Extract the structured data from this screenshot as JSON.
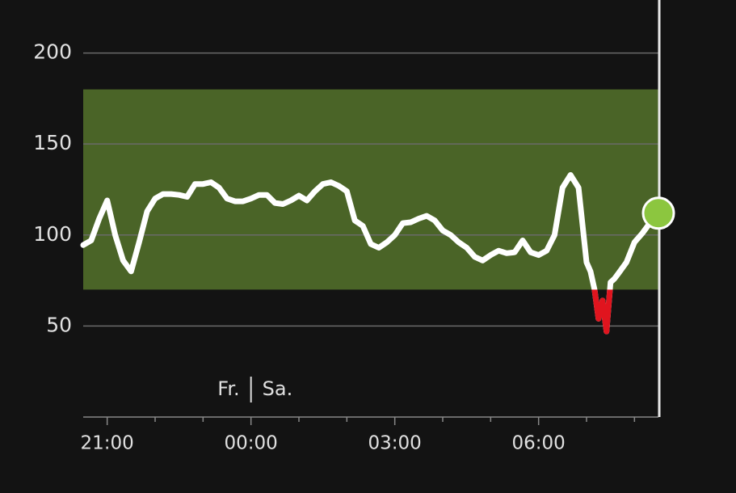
{
  "chart_data": {
    "type": "line",
    "x": [
      "20:30",
      "20:40",
      "20:50",
      "21:00",
      "21:10",
      "21:20",
      "21:30",
      "21:40",
      "21:50",
      "22:00",
      "22:10",
      "22:20",
      "22:30",
      "22:40",
      "22:50",
      "23:00",
      "23:10",
      "23:20",
      "23:30",
      "23:40",
      "23:50",
      "00:00",
      "00:10",
      "00:20",
      "00:30",
      "00:40",
      "00:50",
      "01:00",
      "01:10",
      "01:20",
      "01:30",
      "01:40",
      "01:50",
      "02:00",
      "02:10",
      "02:20",
      "02:30",
      "02:40",
      "02:50",
      "03:00",
      "03:10",
      "03:20",
      "03:30",
      "03:40",
      "03:50",
      "04:00",
      "04:10",
      "04:20",
      "04:30",
      "04:40",
      "04:50",
      "05:00",
      "05:10",
      "05:20",
      "05:30",
      "05:40",
      "05:50",
      "06:00",
      "06:10",
      "06:20",
      "06:30",
      "06:40",
      "06:50",
      "07:00",
      "07:05",
      "07:10",
      "07:15",
      "07:20",
      "07:25",
      "07:30",
      "07:35",
      "07:40",
      "07:50",
      "08:00",
      "08:10",
      "08:20",
      "08:30"
    ],
    "values": [
      94.5,
      97,
      109,
      119,
      100,
      86,
      80,
      96,
      113,
      120,
      122.5,
      122.5,
      122,
      121,
      128,
      128,
      129,
      126,
      120,
      118.5,
      118.5,
      120,
      122,
      122,
      117.6,
      117,
      119,
      121.6,
      119,
      124,
      128,
      129,
      127,
      124,
      108,
      105,
      95,
      93,
      96,
      100,
      106.5,
      107,
      109,
      110.5,
      108,
      102.5,
      100,
      96,
      93,
      88,
      86,
      89,
      91.4,
      90,
      90.5,
      97,
      90.5,
      89,
      91.4,
      100,
      126,
      133,
      126,
      85,
      80,
      70,
      54,
      64,
      47,
      74,
      76,
      79,
      85,
      96,
      101,
      107,
      112
    ],
    "color": "#ffffff",
    "low_color": "#e0141e",
    "target_range": [
      70,
      180
    ],
    "target_color": "#4a6427",
    "current_color": "#8cc63f",
    "xlim": [
      "20:30",
      "08:30"
    ],
    "xticks": [
      "21:00",
      "00:00",
      "03:00",
      "06:00"
    ],
    "xminorticks": [
      "22:00",
      "23:00",
      "01:00",
      "02:00",
      "04:00",
      "05:00",
      "07:00",
      "08:00"
    ],
    "ylim": [
      0,
      230
    ],
    "yticks": [
      50,
      100,
      150,
      200
    ],
    "grid": true,
    "day_labels": [
      "Fr.",
      "Sa."
    ]
  }
}
